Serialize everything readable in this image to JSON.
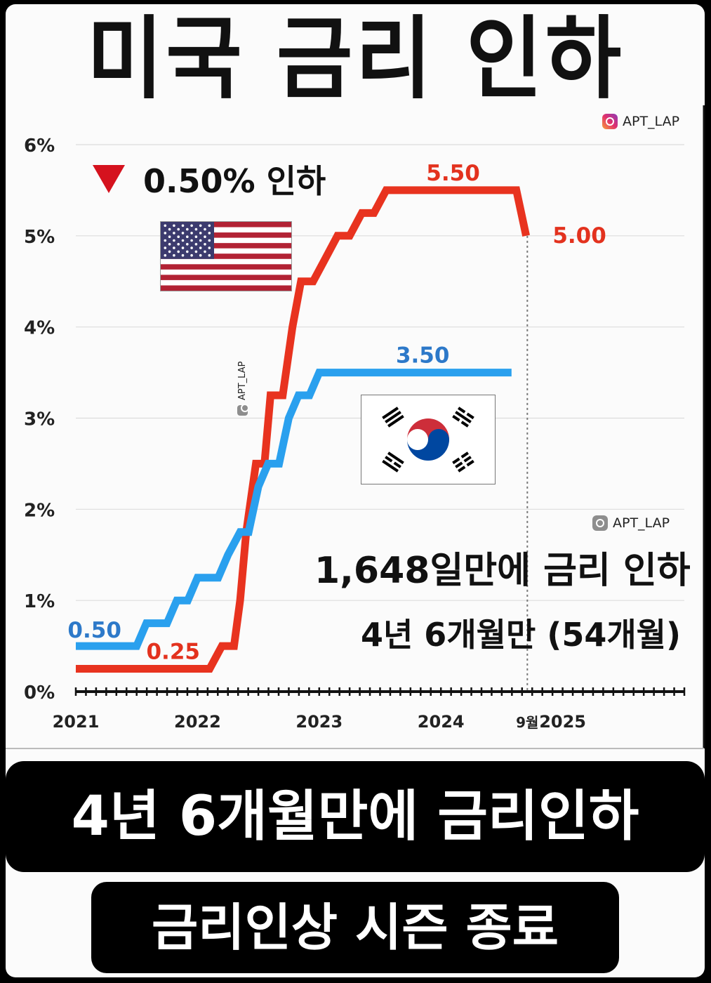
{
  "title": "미국 금리 인하",
  "watermark": "APT_LAP",
  "cut_label": "0.50% 인하",
  "annotation_line1": "1,648일만에 금리 인하",
  "annotation_line2": "4년 6개월만 (54개월)",
  "bottom_banner": "4년 6개월만에 금리인하",
  "bottom_subbanner": "금리인상 시즌 종료",
  "icons": {
    "cut_marker": "red-down-triangle",
    "us_flag": "us-flag",
    "kr_flag": "korea-flag",
    "watermark": "instagram-icon"
  },
  "chart_data": {
    "type": "line",
    "y_ticks": [
      "0%",
      "1%",
      "2%",
      "3%",
      "4%",
      "5%",
      "6%"
    ],
    "ylim": [
      0,
      6
    ],
    "xlim": [
      2021.0,
      2026.0
    ],
    "x_ticks": [
      {
        "label": "2021",
        "x": 2021.0
      },
      {
        "label": "2022",
        "x": 2022.0
      },
      {
        "label": "2023",
        "x": 2023.0
      },
      {
        "label": "2024",
        "x": 2024.0
      },
      {
        "label": "9월",
        "x": 2024.71
      },
      {
        "label": "2025",
        "x": 2025.0
      }
    ],
    "grid": true,
    "series": [
      {
        "name": "US",
        "color": "#e8331f",
        "points": [
          [
            2021.0,
            0.25
          ],
          [
            2022.1,
            0.25
          ],
          [
            2022.2,
            0.5
          ],
          [
            2022.3,
            0.5
          ],
          [
            2022.35,
            1.0
          ],
          [
            2022.4,
            1.75
          ],
          [
            2022.48,
            2.5
          ],
          [
            2022.55,
            2.5
          ],
          [
            2022.6,
            3.25
          ],
          [
            2022.7,
            3.25
          ],
          [
            2022.78,
            4.0
          ],
          [
            2022.85,
            4.5
          ],
          [
            2022.95,
            4.5
          ],
          [
            2023.05,
            4.75
          ],
          [
            2023.15,
            5.0
          ],
          [
            2023.25,
            5.0
          ],
          [
            2023.35,
            5.25
          ],
          [
            2023.45,
            5.25
          ],
          [
            2023.55,
            5.5
          ],
          [
            2024.62,
            5.5
          ],
          [
            2024.7,
            5.0
          ]
        ],
        "labels": [
          {
            "text": "0.25",
            "x": 2021.8,
            "y": 0.25,
            "position": "above"
          },
          {
            "text": "5.50",
            "x": 2024.1,
            "y": 5.5,
            "position": "above"
          },
          {
            "text": "5.00",
            "x": 2024.71,
            "y": 5.0,
            "position": "right"
          }
        ]
      },
      {
        "name": "Korea",
        "color": "#2aa0ee",
        "points": [
          [
            2021.0,
            0.5
          ],
          [
            2021.5,
            0.5
          ],
          [
            2021.58,
            0.75
          ],
          [
            2021.75,
            0.75
          ],
          [
            2021.83,
            1.0
          ],
          [
            2021.92,
            1.0
          ],
          [
            2022.0,
            1.25
          ],
          [
            2022.17,
            1.25
          ],
          [
            2022.25,
            1.5
          ],
          [
            2022.35,
            1.75
          ],
          [
            2022.42,
            1.75
          ],
          [
            2022.5,
            2.25
          ],
          [
            2022.58,
            2.5
          ],
          [
            2022.67,
            2.5
          ],
          [
            2022.75,
            3.0
          ],
          [
            2022.83,
            3.25
          ],
          [
            2022.92,
            3.25
          ],
          [
            2023.0,
            3.5
          ],
          [
            2024.58,
            3.5
          ]
        ],
        "labels": [
          {
            "text": "0.50",
            "x": 2021.2,
            "y": 0.5,
            "position": "above"
          },
          {
            "text": "3.50",
            "x": 2023.85,
            "y": 3.5,
            "position": "above"
          }
        ]
      }
    ],
    "reference_line": {
      "x": 2024.71,
      "style": "dotted"
    }
  }
}
